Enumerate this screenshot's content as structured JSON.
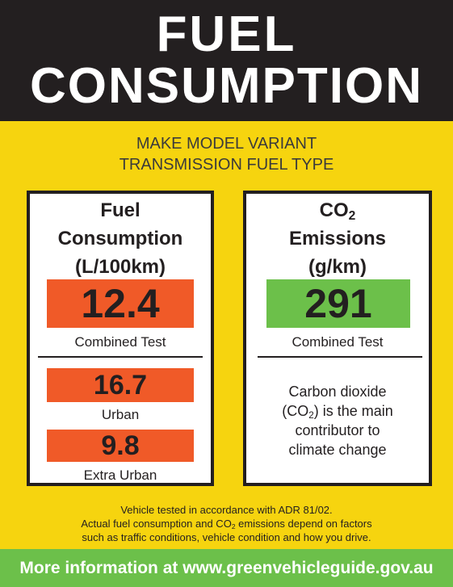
{
  "header": {
    "title_line1": "FUEL",
    "title_line2": "CONSUMPTION"
  },
  "vehicle": {
    "line1": "MAKE MODEL VARIANT",
    "line2": "TRANSMISSION FUEL TYPE"
  },
  "fuel_panel": {
    "title_line1": "Fuel",
    "title_line2": "Consumption",
    "title_line3": "(L/100km)",
    "combined_value": "12.4",
    "combined_label": "Combined Test",
    "urban_value": "16.7",
    "urban_label": "Urban",
    "extra_urban_value": "9.8",
    "extra_urban_label": "Extra Urban"
  },
  "co2_panel": {
    "title_co": "CO",
    "title_sub": "2",
    "title_line2": "Emissions",
    "title_line3": "(g/km)",
    "combined_value": "291",
    "combined_label": "Combined Test",
    "info_line1": "Carbon dioxide",
    "info_line2_pre": "(CO",
    "info_line2_sub": "2",
    "info_line2_post": ") is the main",
    "info_line3": "contributor to",
    "info_line4": "climate change"
  },
  "notes": {
    "line1": "Vehicle tested in accordance with ADR 81/02.",
    "line2_pre": "Actual fuel consumption and CO",
    "line2_sub": "2",
    "line2_post": " emissions depend on factors",
    "line3": "such as traffic conditions, vehicle condition and how you drive."
  },
  "footer": {
    "text": "More information at www.greenvehicleguide.gov.au"
  },
  "colors": {
    "background": "#f6d40f",
    "header": "#231f20",
    "value_orange": "#f05a28",
    "value_green": "#6cc04a",
    "footer": "#6cc04a"
  }
}
